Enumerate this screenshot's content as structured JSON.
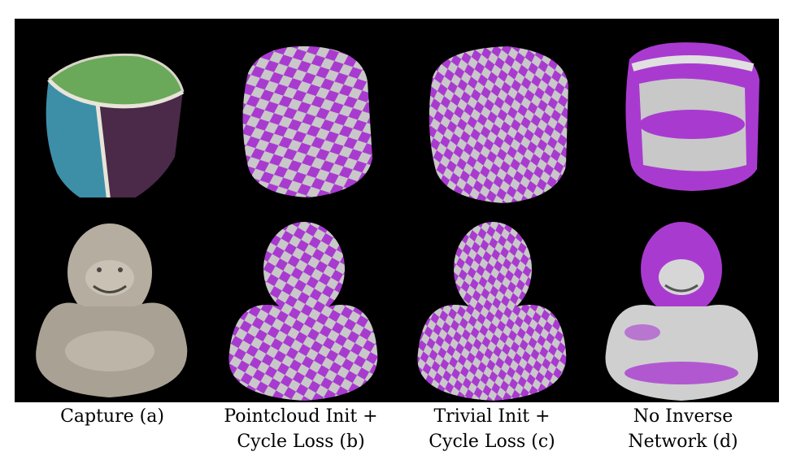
{
  "figure": {
    "columns": [
      {
        "id": "a",
        "caption_lines": [
          "Capture (a)"
        ],
        "top_subject": "cushion-cube",
        "bottom_subject": "buddha-statue",
        "texture": "captured-photo"
      },
      {
        "id": "b",
        "caption_lines": [
          "Pointcloud Init +",
          "Cycle Loss (b)"
        ],
        "top_subject": "cushion-cube",
        "bottom_subject": "buddha-statue",
        "texture": "checkerboard-regular"
      },
      {
        "id": "c",
        "caption_lines": [
          "Trivial Init +",
          "Cycle Loss (c)"
        ],
        "top_subject": "cushion-cube",
        "bottom_subject": "buddha-statue",
        "texture": "checkerboard-distorted"
      },
      {
        "id": "d",
        "caption_lines": [
          "No Inverse",
          "Network (d)"
        ],
        "top_subject": "cushion-cube",
        "bottom_subject": "buddha-statue",
        "texture": "smeared-magenta"
      }
    ],
    "colors": {
      "background": "#000000",
      "checker_magenta": "#a93ad0",
      "checker_light": "#c8c8c8",
      "cushion_green": "#6aa85a",
      "cushion_teal": "#3d8fa8",
      "cushion_purple": "#4a2a48",
      "statue_stone": "#b5ad9f"
    }
  }
}
